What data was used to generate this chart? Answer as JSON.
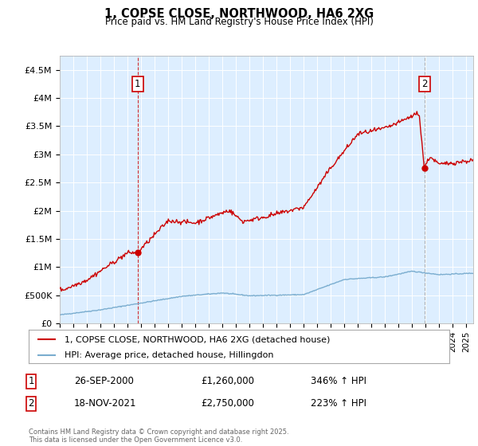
{
  "title": "1, COPSE CLOSE, NORTHWOOD, HA6 2XG",
  "subtitle": "Price paid vs. HM Land Registry's House Price Index (HPI)",
  "legend_line1": "1, COPSE CLOSE, NORTHWOOD, HA6 2XG (detached house)",
  "legend_line2": "HPI: Average price, detached house, Hillingdon",
  "annotation1_label": "1",
  "annotation1_date": "26-SEP-2000",
  "annotation1_price": "£1,260,000",
  "annotation1_hpi": "346% ↑ HPI",
  "annotation2_label": "2",
  "annotation2_date": "18-NOV-2021",
  "annotation2_price": "£2,750,000",
  "annotation2_hpi": "223% ↑ HPI",
  "footer": "Contains HM Land Registry data © Crown copyright and database right 2025.\nThis data is licensed under the Open Government Licence v3.0.",
  "red_color": "#cc0000",
  "blue_color": "#7aadcf",
  "bg_color": "#ddeeff",
  "ylim": [
    0,
    4750000
  ],
  "yticks": [
    0,
    500000,
    1000000,
    1500000,
    2000000,
    2500000,
    3000000,
    3500000,
    4000000,
    4500000
  ],
  "ytick_labels": [
    "£0",
    "£500K",
    "£1M",
    "£1.5M",
    "£2M",
    "£2.5M",
    "£3M",
    "£3.5M",
    "£4M",
    "£4.5M"
  ],
  "xstart": 1995.0,
  "xend": 2025.5
}
